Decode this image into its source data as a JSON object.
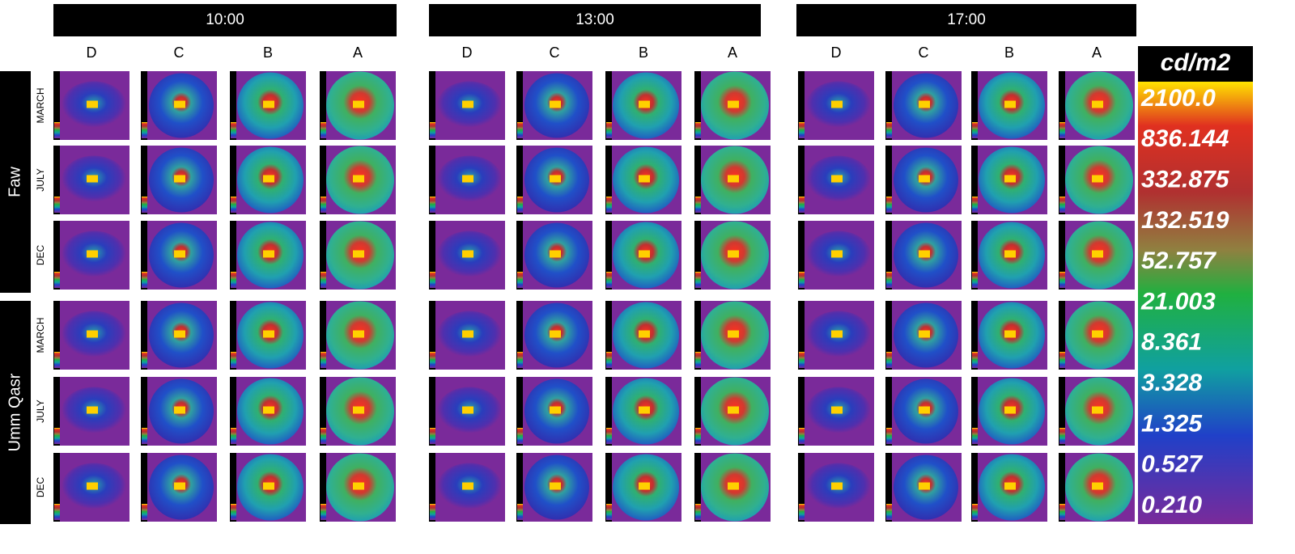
{
  "headers": [
    "10:00",
    "13:00",
    "17:00"
  ],
  "columns": [
    "D",
    "C",
    "B",
    "A"
  ],
  "locations": [
    {
      "name": "Faw",
      "months": [
        "MARCH",
        "JULY",
        "DEC"
      ]
    },
    {
      "name": "Umm Qasr",
      "months": [
        "MARCH",
        "JULY",
        "DEC"
      ]
    }
  ],
  "legend": {
    "unit": "cd/m2",
    "labels": [
      "2100.0",
      "836.144",
      "332.875",
      "132.519",
      "52.757",
      "21.003",
      "8.361",
      "3.328",
      "1.325",
      "0.527",
      "0.210"
    ]
  }
}
